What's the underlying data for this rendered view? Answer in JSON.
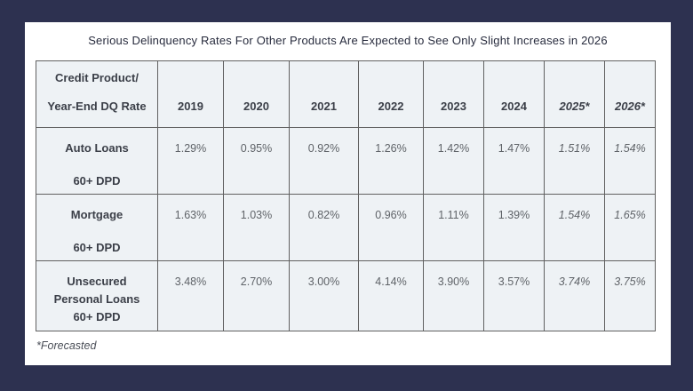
{
  "page": {
    "background_color": "#2d3150",
    "card_color": "#ffffff"
  },
  "chart_data": {
    "type": "table",
    "title": "Serious Delinquency Rates For Other Products Are Expected to See Only Slight Increases in 2026",
    "header": {
      "label_lines": [
        "Credit Product/",
        "Year-End DQ Rate"
      ],
      "year_columns": [
        "2019",
        "2020",
        "2021",
        "2022",
        "2023",
        "2024",
        "2025*",
        "2026*"
      ],
      "forecast_year_columns": [
        "2025*",
        "2026*"
      ]
    },
    "rows": [
      {
        "product_lines": [
          "Auto Loans",
          "60+ DPD"
        ],
        "values": [
          "1.29%",
          "0.95%",
          "0.92%",
          "1.26%",
          "1.42%",
          "1.47%",
          "1.51%",
          "1.54%"
        ]
      },
      {
        "product_lines": [
          "Mortgage",
          "60+ DPD"
        ],
        "values": [
          "1.63%",
          "1.03%",
          "0.82%",
          "0.96%",
          "1.11%",
          "1.39%",
          "1.54%",
          "1.65%"
        ]
      },
      {
        "product_lines": [
          "Unsecured",
          "Personal Loans",
          "60+ DPD"
        ],
        "values": [
          "3.48%",
          "2.70%",
          "3.00%",
          "4.14%",
          "3.90%",
          "3.57%",
          "3.74%",
          "3.75%"
        ]
      }
    ],
    "footnote": "*Forecasted",
    "colors": {
      "cell_background": "#eef2f5",
      "grid_border": "#616161",
      "header_text": "#3b3f48",
      "value_text": "#5f6368",
      "title_text": "#272b3d",
      "background": "#2d3150"
    }
  }
}
